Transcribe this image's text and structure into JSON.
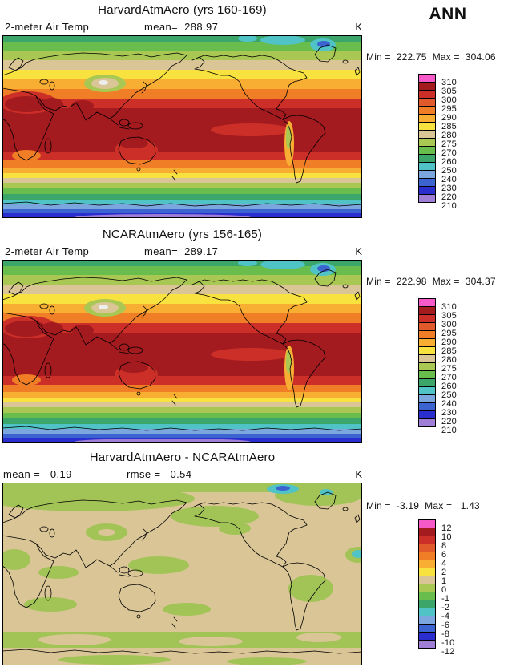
{
  "figure": {
    "season_label": "ANN"
  },
  "palette": [
    "#F659C8",
    "#A31A1F",
    "#CC2F27",
    "#E05A2B",
    "#F07E26",
    "#F7AE33",
    "#F7E23F",
    "#D9C596",
    "#A9C753",
    "#69BD4C",
    "#3CA66A",
    "#4FC3C6",
    "#7CA7DE",
    "#3B64D0",
    "#2B2ECF",
    "#9F7ED6"
  ],
  "panels": [
    {
      "title": "HarvardAtmAero (yrs 160-169)",
      "variable": "2-meter Air Temp",
      "mean_label": "mean=  288.97",
      "units": "K",
      "minmax_label": "Min =  222.75  Max =  304.06",
      "colorbar": {
        "labels": [
          "310",
          "305",
          "300",
          "295",
          "290",
          "285",
          "280",
          "275",
          "270",
          "260",
          "250",
          "240",
          "230",
          "220",
          "210"
        ]
      }
    },
    {
      "title": "NCARAtmAero (yrs 156-165)",
      "variable": "2-meter Air Temp",
      "mean_label": "mean=  289.17",
      "units": "K",
      "minmax_label": "Min =  222.98  Max =  304.37",
      "colorbar": {
        "labels": [
          "310",
          "305",
          "300",
          "295",
          "290",
          "285",
          "280",
          "275",
          "270",
          "260",
          "250",
          "240",
          "230",
          "220",
          "210"
        ]
      }
    },
    {
      "title": "HarvardAtmAero - NCARAtmAero",
      "mean_label": "mean =  -0.19",
      "rmse_label": "rmse =   0.54",
      "units": "K",
      "minmax_label": "Min =  -3.19  Max =   1.43",
      "colorbar": {
        "labels": [
          "12",
          "10",
          "8",
          "6",
          "4",
          "2",
          "1",
          "0",
          "-1",
          "-2",
          "-4",
          "-6",
          "-8",
          "-10",
          "-12"
        ]
      }
    }
  ],
  "chart_data": [
    {
      "type": "heatmap",
      "title": "HarvardAtmAero (yrs 160-169)",
      "variable": "2-meter Air Temp",
      "season": "ANN",
      "units": "K",
      "mean": 288.97,
      "min": 222.75,
      "max": 304.06,
      "contour_levels": [
        210,
        220,
        230,
        240,
        250,
        260,
        270,
        275,
        280,
        285,
        290,
        295,
        300,
        305,
        310
      ],
      "legend_position": "right",
      "projection": "global lat-lon map, filled contours with coastlines"
    },
    {
      "type": "heatmap",
      "title": "NCARAtmAero (yrs 156-165)",
      "variable": "2-meter Air Temp",
      "season": "ANN",
      "units": "K",
      "mean": 289.17,
      "min": 222.98,
      "max": 304.37,
      "contour_levels": [
        210,
        220,
        230,
        240,
        250,
        260,
        270,
        275,
        280,
        285,
        290,
        295,
        300,
        305,
        310
      ],
      "legend_position": "right",
      "projection": "global lat-lon map, filled contours with coastlines"
    },
    {
      "type": "heatmap",
      "title": "HarvardAtmAero - NCARAtmAero",
      "season": "ANN",
      "units": "K",
      "mean": -0.19,
      "rmse": 0.54,
      "min": -3.19,
      "max": 1.43,
      "contour_levels": [
        -12,
        -10,
        -8,
        -6,
        -4,
        -2,
        -1,
        0,
        1,
        2,
        4,
        6,
        8,
        10,
        12
      ],
      "legend_position": "right",
      "projection": "global lat-lon map, filled contours with coastlines"
    }
  ]
}
